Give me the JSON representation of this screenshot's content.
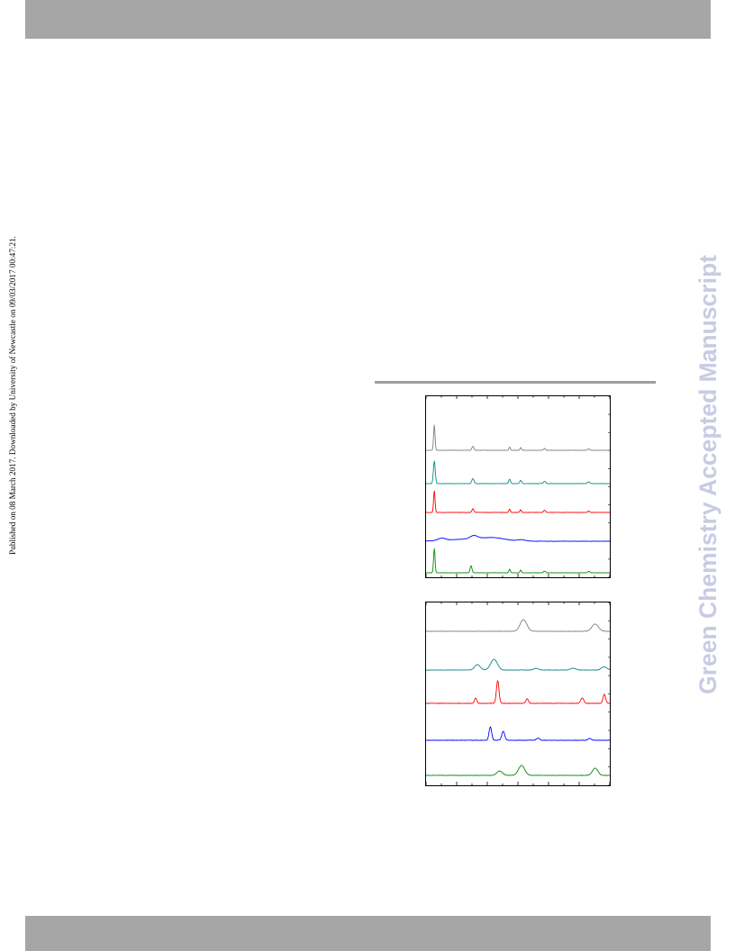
{
  "header": {
    "bar_color": "#a6a6a6"
  },
  "footer": {
    "bar_color": "#a6a6a6"
  },
  "side_note": "Published on 08 March 2017. Downloaded by University of Newcastle on 09/03/2017 00:47:21.",
  "watermark": {
    "text": "Green Chemistry Accepted Manuscript",
    "color": "#c9cbe3"
  },
  "separator_color": "#9e9e9e",
  "chart_data": [
    {
      "type": "line",
      "title": "",
      "xlabel": "",
      "ylabel": "",
      "grid": false,
      "legend": "none",
      "series": [
        {
          "color": "#808080",
          "peaks": [
            0.045,
            0.255,
            0.455,
            0.515,
            0.645,
            0.885
          ]
        },
        {
          "color": "#0f8a80",
          "peaks": [
            0.045,
            0.255,
            0.455,
            0.515,
            0.645,
            0.885
          ]
        },
        {
          "color": "#ff0000",
          "peaks": [
            0.045,
            0.255,
            0.455,
            0.515,
            0.645,
            0.885
          ]
        },
        {
          "color": "#0000ff",
          "peaks": [
            0.085,
            0.26,
            0.37,
            0.52
          ]
        },
        {
          "color": "#0a8a0a",
          "peaks": [
            0.045,
            0.245,
            0.455,
            0.515,
            0.645,
            0.885
          ]
        }
      ]
    },
    {
      "type": "line",
      "title": "",
      "xlabel": "",
      "ylabel": "",
      "grid": false,
      "legend": "none",
      "series": [
        {
          "color": "#808080",
          "peaks": [
            0.53,
            0.92
          ]
        },
        {
          "color": "#0f8a80",
          "peaks": [
            0.28,
            0.37,
            0.6,
            0.8,
            0.97
          ]
        },
        {
          "color": "#ff0000",
          "peaks": [
            0.27,
            0.39,
            0.55,
            0.85,
            0.97
          ]
        },
        {
          "color": "#0000ff",
          "peaks": [
            0.35,
            0.42,
            0.61,
            0.89
          ]
        },
        {
          "color": "#0a8a0a",
          "peaks": [
            0.4,
            0.52,
            0.92
          ]
        }
      ]
    }
  ]
}
